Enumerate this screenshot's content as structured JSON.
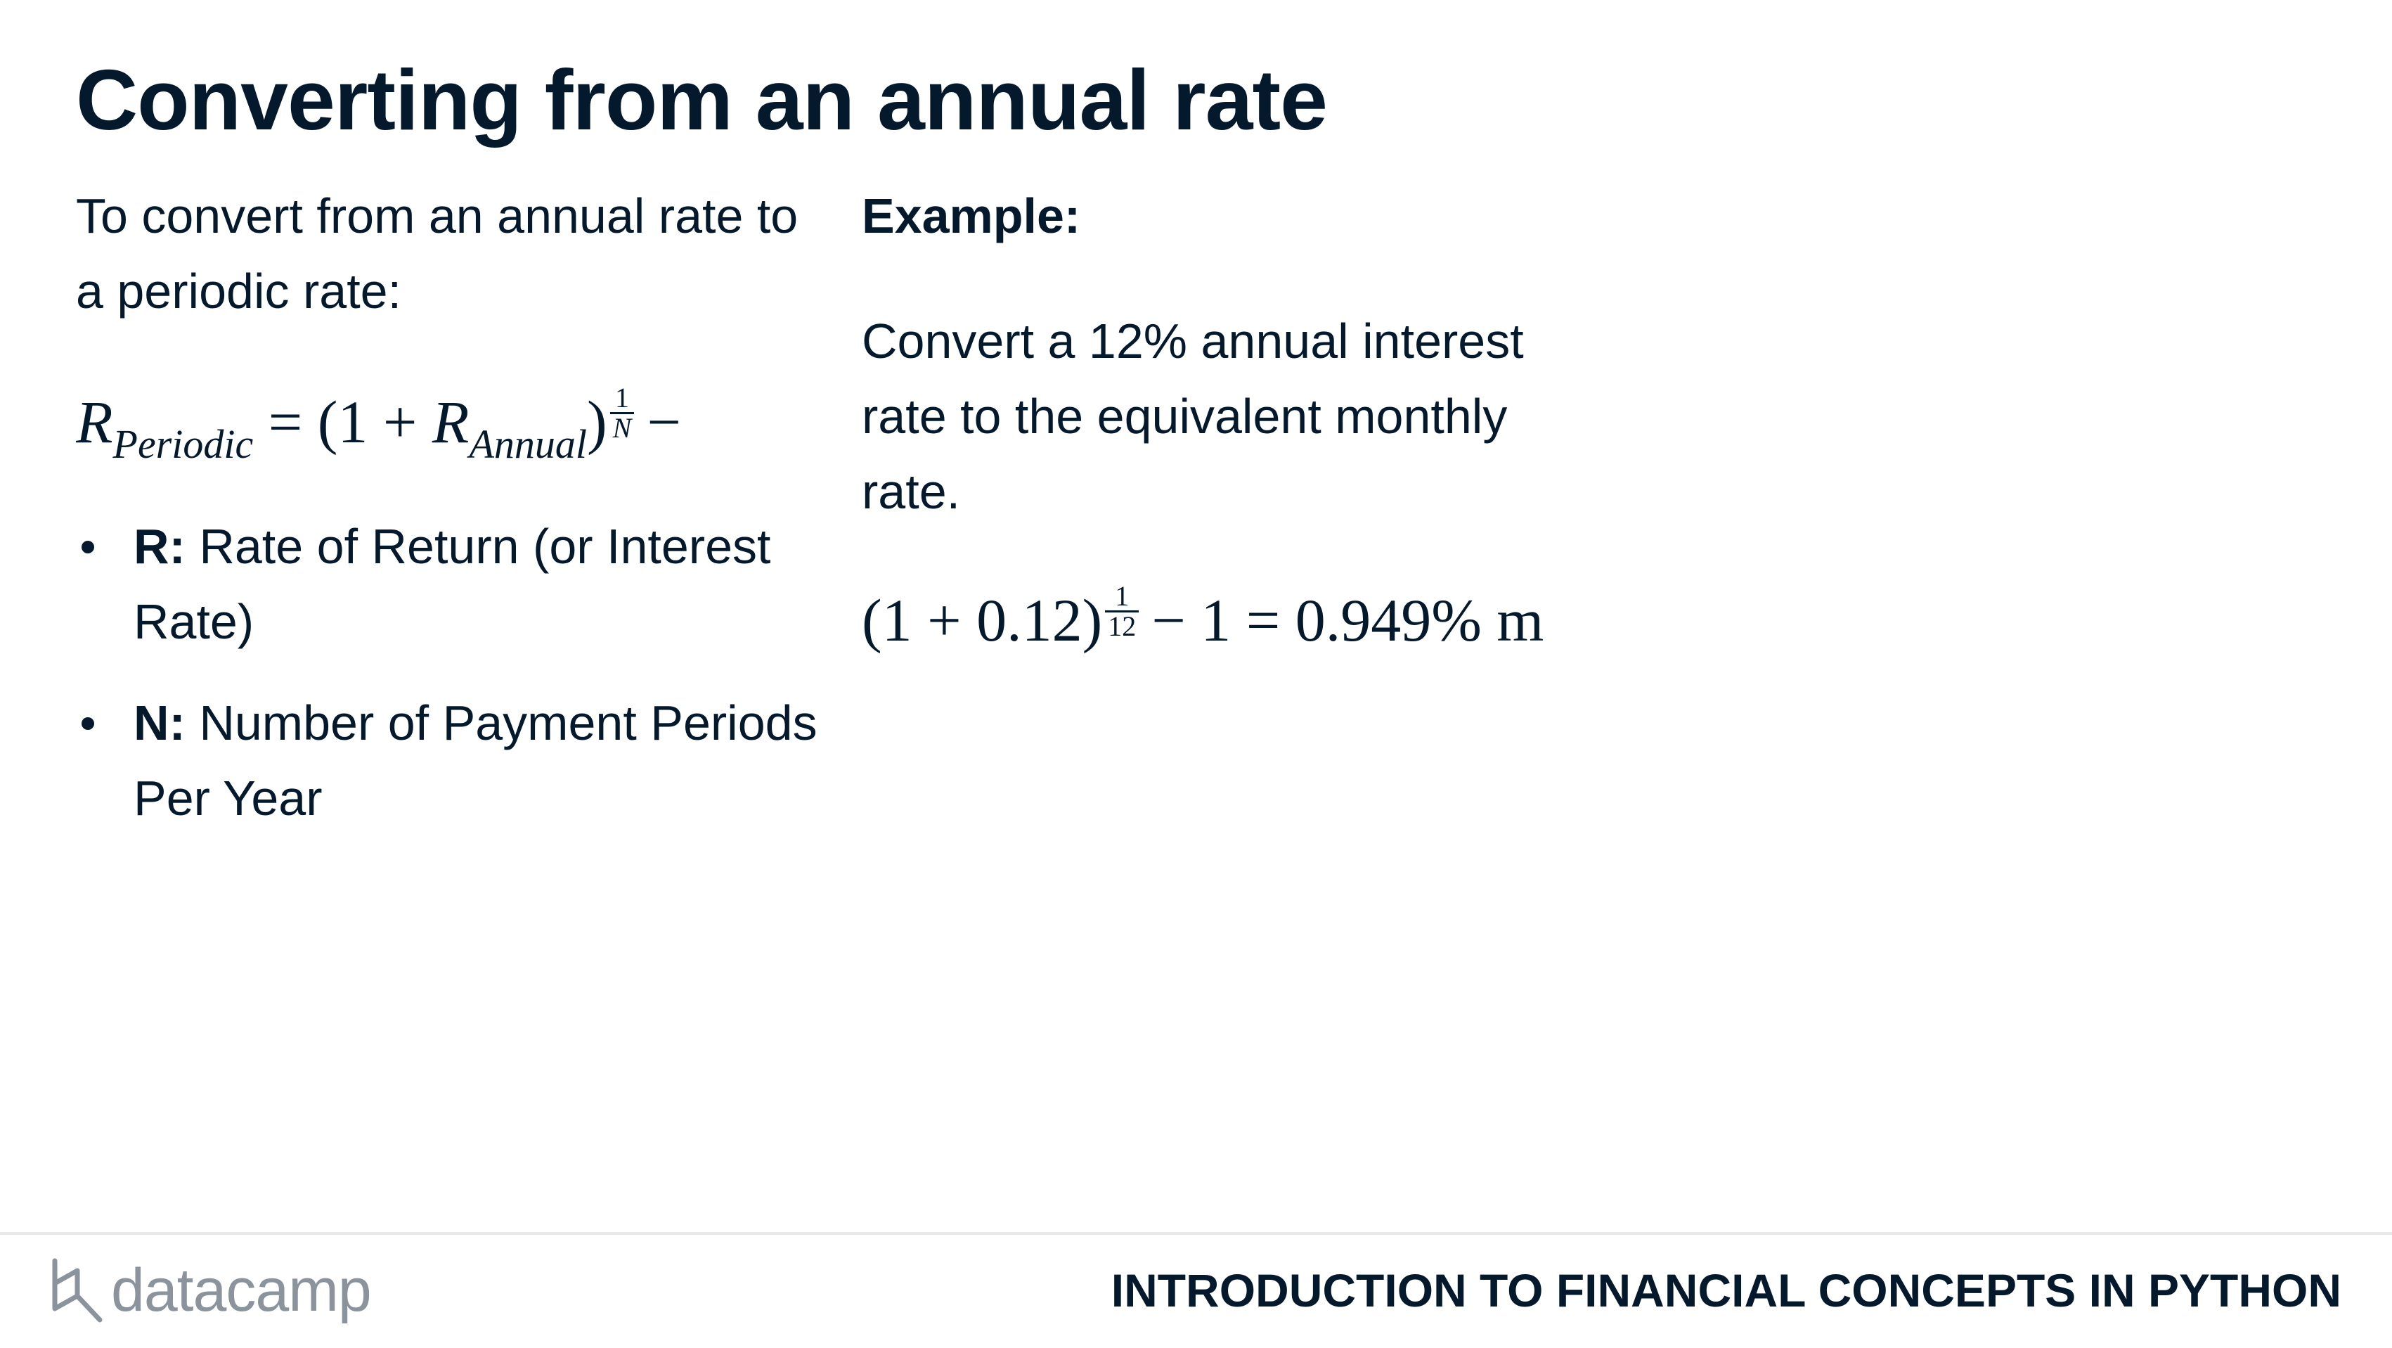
{
  "slide": {
    "title": "Converting from an annual rate"
  },
  "left": {
    "intro": "To convert from an annual rate to a periodic rate:",
    "formula": {
      "lhs_var": "R",
      "lhs_sub": "Periodic",
      "equals": "=",
      "open": "(1 +",
      "rhs_var": "R",
      "rhs_sub": "Annual",
      "close": ")",
      "exp_num": "1",
      "exp_den": "N",
      "tail": "−"
    },
    "bullets": [
      {
        "term": "R:",
        "text": " Rate of Return (or Interest Rate)"
      },
      {
        "term": "N:",
        "text": " Number of Payment Periods Per Year"
      }
    ]
  },
  "right": {
    "heading": "Example:",
    "description": "Convert a 12% annual interest rate to the equivalent monthly rate.",
    "formula": {
      "base": "(1 + 0.12)",
      "exp_num": "1",
      "exp_den": "12",
      "result": "− 1 = 0.949% m"
    }
  },
  "footer": {
    "brand": "datacamp",
    "course": "INTRODUCTION TO FINANCIAL CONCEPTS IN PYTHON",
    "brand_color": "#8b939c",
    "text_color": "#05192d"
  }
}
